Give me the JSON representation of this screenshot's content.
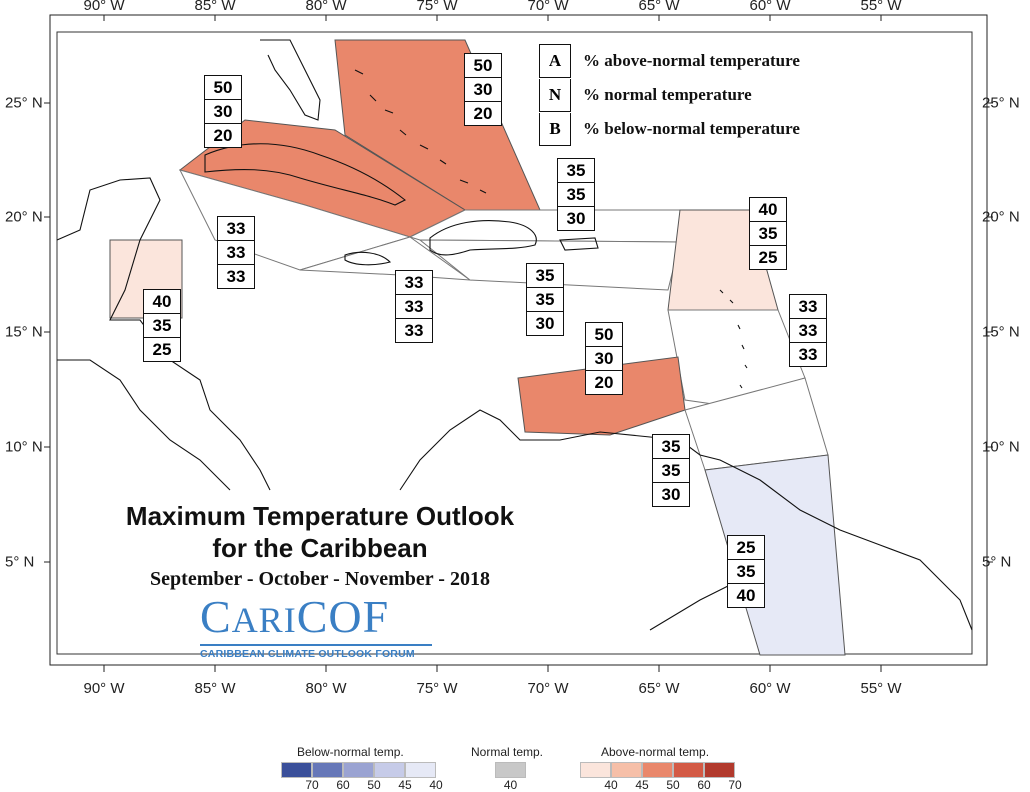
{
  "axes": {
    "lon_labels": [
      "90° W",
      "85° W",
      "80° W",
      "75° W",
      "70° W",
      "65° W",
      "60° W",
      "55° W"
    ],
    "lat_labels": [
      "25° N",
      "20° N",
      "15° N",
      "10° N",
      "5° N"
    ]
  },
  "key": {
    "rows": [
      {
        "letter": "A",
        "text": "% above-normal temperature"
      },
      {
        "letter": "N",
        "text": "% normal temperature"
      },
      {
        "letter": "B",
        "text": "% below-normal temperature"
      }
    ]
  },
  "regions": [
    {
      "id": "bahamas",
      "category": "above-normal",
      "level": 50,
      "probabilities": [
        "50",
        "30",
        "20"
      ]
    },
    {
      "id": "cuba",
      "category": "above-normal",
      "level": 50,
      "probabilities": [
        "50",
        "30",
        "20"
      ]
    },
    {
      "id": "belize",
      "category": "above-normal",
      "level": 40,
      "probabilities": [
        "40",
        "35",
        "25"
      ]
    },
    {
      "id": "cayman",
      "category": "normal",
      "level": 33,
      "probabilities": [
        "33",
        "33",
        "33"
      ]
    },
    {
      "id": "jamaica",
      "category": "normal",
      "level": 33,
      "probabilities": [
        "33",
        "33",
        "33"
      ]
    },
    {
      "id": "north-hispaniola",
      "category": "normal",
      "level": 35,
      "probabilities": [
        "35",
        "35",
        "30"
      ]
    },
    {
      "id": "hispaniola-pr",
      "category": "normal",
      "level": 35,
      "probabilities": [
        "35",
        "35",
        "30"
      ]
    },
    {
      "id": "leeward-islands",
      "category": "above-normal",
      "level": 40,
      "probabilities": [
        "40",
        "35",
        "25"
      ]
    },
    {
      "id": "windward-islands",
      "category": "normal",
      "level": 33,
      "probabilities": [
        "33",
        "33",
        "33"
      ]
    },
    {
      "id": "abc-islands",
      "category": "above-normal",
      "level": 50,
      "probabilities": [
        "50",
        "30",
        "20"
      ]
    },
    {
      "id": "trinidad",
      "category": "normal",
      "level": 35,
      "probabilities": [
        "35",
        "35",
        "30"
      ]
    },
    {
      "id": "guianas",
      "category": "below-normal",
      "level": 40,
      "probabilities": [
        "25",
        "35",
        "40"
      ]
    }
  ],
  "title": {
    "line1": "Maximum Temperature Outlook",
    "line2": "for the Caribbean",
    "line3": "September - October - November - 2018"
  },
  "logo": {
    "main_big": "C",
    "main_small": "ARI",
    "main_rest": "COF",
    "subtitle": "CARIBBEAN CLIMATE OUTLOOK FORUM"
  },
  "legend": {
    "below": {
      "title": "Below-normal temp.",
      "levels": [
        "70",
        "60",
        "50",
        "45",
        "40"
      ],
      "colors": [
        "#3a4f9a",
        "#6677b8",
        "#9aa3d2",
        "#c6cbe8",
        "#e6e9f6"
      ]
    },
    "normal": {
      "title": "Normal temp.",
      "levels": [
        "40"
      ],
      "colors": [
        "#c8c8c8"
      ]
    },
    "above": {
      "title": "Above-normal temp.",
      "levels": [
        "40",
        "45",
        "50",
        "60",
        "70"
      ],
      "colors": [
        "#fbe5dc",
        "#f6bfa8",
        "#e9876b",
        "#d35a45",
        "#b23a2d"
      ]
    }
  }
}
